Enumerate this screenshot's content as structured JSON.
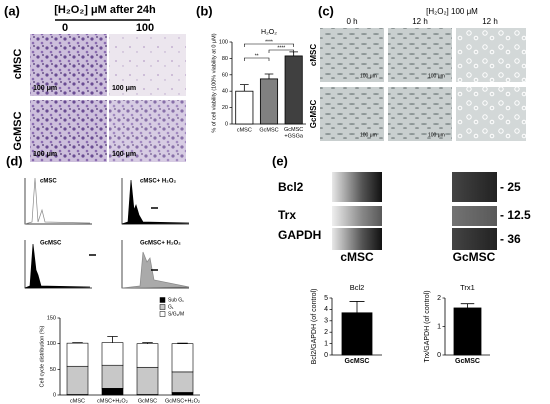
{
  "panels": {
    "a": {
      "label": "(a)",
      "title": "[H₂O₂] μM after 24h",
      "columns": [
        "0",
        "100"
      ],
      "rows": [
        "cMSC",
        "GcMSC"
      ],
      "scale_bar": "100 μm"
    },
    "b": {
      "label": "(b)"
    },
    "c": {
      "label": "(c)",
      "title": "[H₂O₂] 100 μM",
      "columns": [
        "0 h",
        "12 h",
        "12 h"
      ],
      "rows": [
        "cMSC",
        "GcMSC"
      ],
      "scale_bar": "100 μm"
    },
    "d": {
      "label": "(d)",
      "histograms": [
        "cMSC",
        "cMSC+ H₂O₂",
        "GcMSC",
        "GcMSC+ H₂O₂"
      ]
    },
    "e": {
      "label": "(e)",
      "blots": [
        "Bcl2",
        "Trx",
        "GAPDH"
      ],
      "sizes": [
        "- 25",
        "- 12.5",
        "- 36"
      ],
      "columns": [
        "cMSC",
        "GcMSC"
      ]
    }
  },
  "chart_data": [
    {
      "type": "bar",
      "title": "H₂O₂",
      "ylabel": "% of cell viability (100% viability at 0 μM)",
      "categories": [
        "cMSC",
        "GcMSC",
        "GcMSC +GSGa"
      ],
      "values": [
        40,
        55,
        83
      ],
      "errors": [
        8,
        6,
        5
      ],
      "colors": [
        "#ffffff",
        "#808080",
        "#404040"
      ],
      "ylim": [
        0,
        100
      ],
      "yticks": [
        0,
        20,
        40,
        60,
        80,
        100
      ],
      "annotations": [
        "**",
        "****",
        "****"
      ]
    },
    {
      "type": "stacked_bar",
      "ylabel": "Cell cycle distribution (%)",
      "categories": [
        "cMSC",
        "cMSC+H₂O₂",
        "GcMSC",
        "GcMSC+H₂O₂"
      ],
      "series": [
        {
          "name": "Sub G₁",
          "color": "#000000",
          "values": [
            1,
            13,
            1,
            5
          ]
        },
        {
          "name": "G₁",
          "color": "#c8c8c8",
          "values": [
            55,
            45,
            53,
            40
          ]
        },
        {
          "name": "S/G₂/M",
          "color": "#ffffff",
          "values": [
            45,
            44,
            46,
            55
          ],
          "errors": [
            1,
            12,
            2,
            1
          ]
        }
      ],
      "ylim": [
        0,
        150
      ],
      "yticks": [
        0,
        50,
        100,
        150
      ]
    },
    {
      "type": "bar",
      "title": "Bcl2",
      "ylabel": "Bcl2/GAPDH (of control)",
      "categories": [
        "GcMSC"
      ],
      "values": [
        3.7
      ],
      "errors": [
        1
      ],
      "colors": [
        "#000000"
      ],
      "ylim": [
        0,
        5
      ],
      "yticks": [
        0,
        1,
        2,
        3,
        4,
        5
      ]
    },
    {
      "type": "bar",
      "title": "Trx1",
      "ylabel": "Trx/GAPDH (of control)",
      "categories": [
        "GcMSC"
      ],
      "values": [
        1.65
      ],
      "errors": [
        0.15
      ],
      "colors": [
        "#000000"
      ],
      "ylim": [
        0,
        2
      ],
      "yticks": [
        0,
        1,
        2
      ]
    }
  ]
}
